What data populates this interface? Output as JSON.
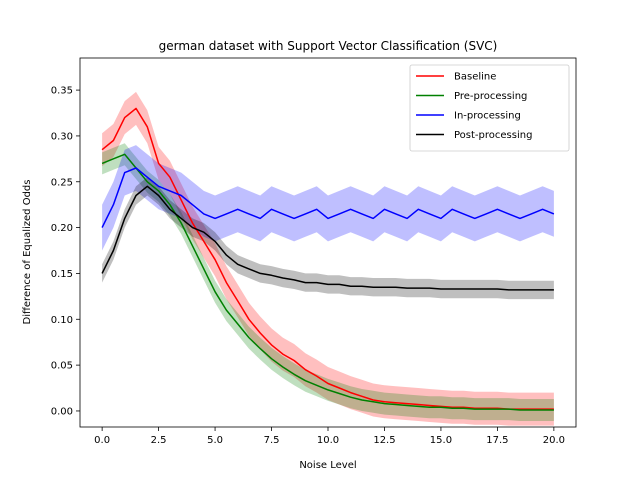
{
  "chart_data": {
    "type": "line",
    "title": "german dataset with Support Vector Classification (SVC)",
    "xlabel": "Noise Level",
    "ylabel": "Difference of Equalized Odds",
    "xlim": [
      -0.98,
      20.98
    ],
    "ylim": [
      -0.0175,
      0.385
    ],
    "xticks": [
      0.0,
      2.5,
      5.0,
      7.5,
      10.0,
      12.5,
      15.0,
      17.5,
      20.0
    ],
    "yticks": [
      0.0,
      0.05,
      0.1,
      0.15,
      0.2,
      0.25,
      0.3,
      0.35
    ],
    "xtick_labels": [
      "0.0",
      "2.5",
      "5.0",
      "7.5",
      "10.0",
      "12.5",
      "15.0",
      "17.5",
      "20.0"
    ],
    "ytick_labels": [
      "0.00",
      "0.05",
      "0.10",
      "0.15",
      "0.20",
      "0.25",
      "0.30",
      "0.35"
    ],
    "grid": false,
    "legend_position": "top-right",
    "x": [
      0.0,
      0.5,
      1.0,
      1.5,
      2.0,
      2.5,
      3.0,
      3.5,
      4.0,
      4.5,
      5.0,
      5.5,
      6.0,
      6.5,
      7.0,
      7.5,
      8.0,
      8.5,
      9.0,
      9.5,
      10.0,
      10.5,
      11.0,
      11.5,
      12.0,
      12.5,
      13.0,
      13.5,
      14.0,
      14.5,
      15.0,
      15.5,
      16.0,
      16.5,
      17.0,
      17.5,
      18.0,
      18.5,
      19.0,
      19.5,
      20.0
    ],
    "series": [
      {
        "name": "Baseline",
        "color": "#ff0000",
        "values": [
          0.285,
          0.295,
          0.32,
          0.33,
          0.31,
          0.27,
          0.255,
          0.23,
          0.205,
          0.185,
          0.165,
          0.14,
          0.12,
          0.1,
          0.085,
          0.072,
          0.062,
          0.055,
          0.045,
          0.038,
          0.03,
          0.025,
          0.02,
          0.016,
          0.012,
          0.01,
          0.009,
          0.008,
          0.007,
          0.006,
          0.005,
          0.004,
          0.004,
          0.003,
          0.003,
          0.003,
          0.002,
          0.002,
          0.002,
          0.002,
          0.002
        ],
        "band": 0.018
      },
      {
        "name": "Pre-processing",
        "color": "#008000",
        "values": [
          0.27,
          0.275,
          0.28,
          0.265,
          0.25,
          0.24,
          0.225,
          0.205,
          0.18,
          0.155,
          0.13,
          0.11,
          0.095,
          0.08,
          0.068,
          0.057,
          0.048,
          0.04,
          0.033,
          0.028,
          0.023,
          0.019,
          0.015,
          0.012,
          0.01,
          0.008,
          0.007,
          0.006,
          0.005,
          0.004,
          0.004,
          0.003,
          0.003,
          0.002,
          0.002,
          0.002,
          0.002,
          0.001,
          0.001,
          0.001,
          0.001
        ],
        "band": 0.012
      },
      {
        "name": "In-processing",
        "color": "#0000ff",
        "values": [
          0.2,
          0.225,
          0.26,
          0.265,
          0.255,
          0.245,
          0.24,
          0.235,
          0.225,
          0.215,
          0.21,
          0.215,
          0.22,
          0.215,
          0.21,
          0.22,
          0.215,
          0.21,
          0.215,
          0.22,
          0.21,
          0.215,
          0.22,
          0.215,
          0.21,
          0.22,
          0.215,
          0.21,
          0.22,
          0.215,
          0.21,
          0.22,
          0.215,
          0.21,
          0.215,
          0.22,
          0.215,
          0.21,
          0.215,
          0.22,
          0.215
        ],
        "band": 0.025
      },
      {
        "name": "Post-processing",
        "color": "#000000",
        "values": [
          0.15,
          0.175,
          0.21,
          0.235,
          0.245,
          0.235,
          0.22,
          0.21,
          0.2,
          0.195,
          0.185,
          0.17,
          0.16,
          0.155,
          0.15,
          0.148,
          0.145,
          0.143,
          0.14,
          0.14,
          0.138,
          0.138,
          0.136,
          0.136,
          0.135,
          0.135,
          0.135,
          0.134,
          0.134,
          0.134,
          0.133,
          0.133,
          0.133,
          0.133,
          0.133,
          0.133,
          0.132,
          0.132,
          0.132,
          0.132,
          0.132
        ],
        "band": 0.01
      }
    ]
  }
}
